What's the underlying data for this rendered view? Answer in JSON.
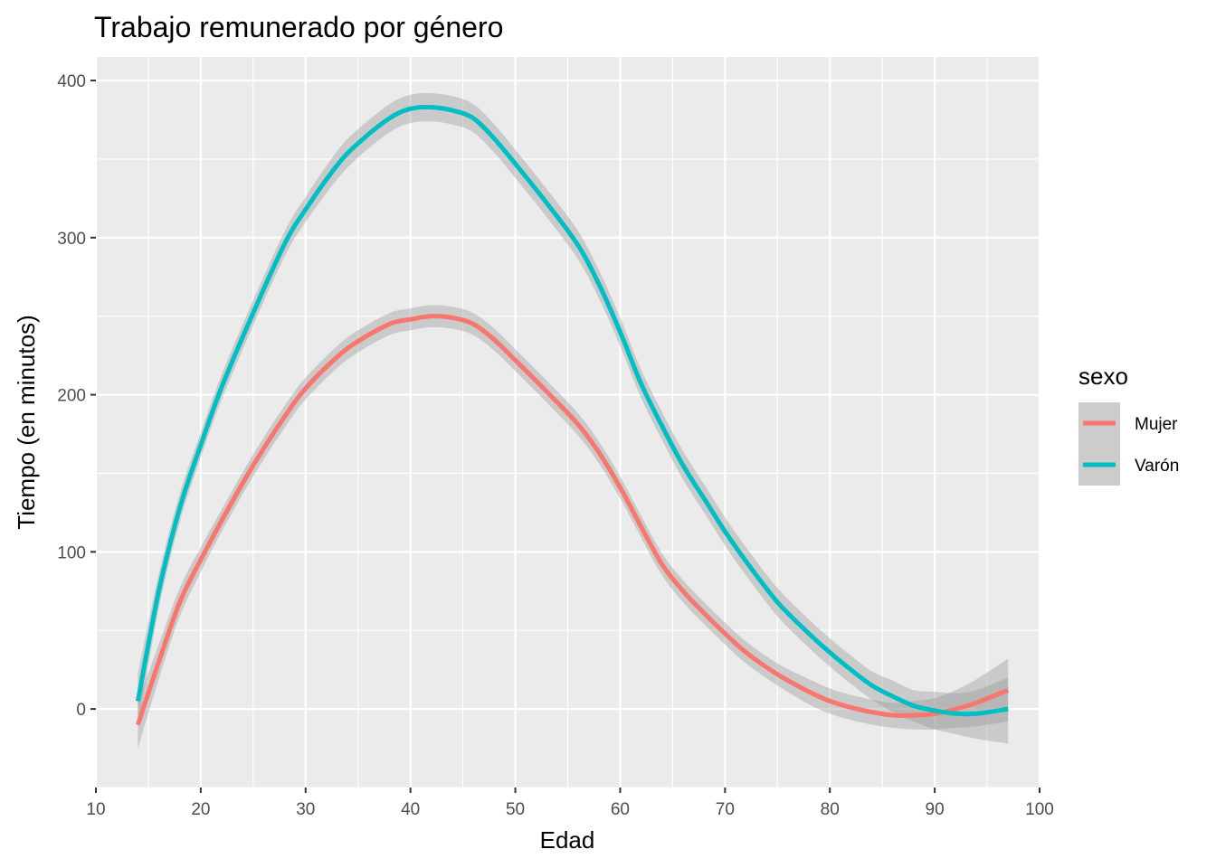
{
  "chart_data": {
    "type": "line",
    "title": "Trabajo remunerado por género",
    "xlabel": "Edad",
    "ylabel": "Tiempo (en minutos)",
    "xlim": [
      10,
      100
    ],
    "ylim": [
      -50,
      415
    ],
    "x_ticks": [
      10,
      20,
      30,
      40,
      50,
      60,
      70,
      80,
      90,
      100
    ],
    "y_ticks": [
      0,
      100,
      200,
      300,
      400
    ],
    "grid": true,
    "legend": {
      "title": "sexo",
      "position": "right"
    },
    "series": [
      {
        "name": "Mujer",
        "color": "#F8766D",
        "x": [
          14,
          16,
          18,
          20,
          22,
          25,
          28,
          30,
          33,
          35,
          38,
          40,
          42,
          44,
          46,
          48,
          50,
          53,
          56,
          58,
          60,
          62,
          64,
          66,
          68,
          70,
          72,
          75,
          78,
          80,
          82,
          84,
          86,
          88,
          90,
          92,
          94,
          97
        ],
        "y": [
          -10,
          30,
          68,
          95,
          120,
          155,
          186,
          204,
          224,
          234,
          245,
          248,
          250,
          249,
          245,
          235,
          222,
          202,
          181,
          163,
          141,
          116,
          92,
          75,
          61,
          48,
          36,
          22,
          11,
          5,
          1,
          -2,
          -4,
          -4,
          -3,
          0,
          4,
          12
        ],
        "y_low": [
          -25,
          19,
          59,
          87,
          113,
          148,
          179,
          197,
          217,
          227,
          238,
          241,
          243,
          242,
          238,
          228,
          215,
          195,
          174,
          156,
          134,
          109,
          85,
          68,
          54,
          41,
          29,
          15,
          3,
          -3,
          -7,
          -10,
          -12,
          -13,
          -13,
          -12,
          -11,
          -8
        ],
        "y_high": [
          5,
          41,
          77,
          103,
          127,
          162,
          193,
          211,
          231,
          241,
          252,
          255,
          257,
          256,
          252,
          242,
          229,
          209,
          188,
          170,
          148,
          123,
          99,
          82,
          68,
          55,
          43,
          29,
          19,
          13,
          9,
          6,
          4,
          5,
          7,
          12,
          19,
          32
        ]
      },
      {
        "name": "Varón",
        "color": "#00BFC4",
        "x": [
          14,
          16,
          18,
          20,
          22,
          25,
          28,
          30,
          33,
          35,
          38,
          40,
          42,
          44,
          46,
          48,
          50,
          53,
          56,
          58,
          60,
          62,
          64,
          66,
          68,
          70,
          72,
          75,
          78,
          80,
          82,
          84,
          86,
          88,
          90,
          92,
          94,
          97
        ],
        "y": [
          5,
          75,
          128,
          168,
          205,
          252,
          296,
          318,
          346,
          360,
          376,
          382,
          383,
          381,
          376,
          363,
          347,
          322,
          295,
          270,
          240,
          207,
          180,
          155,
          134,
          113,
          94,
          68,
          48,
          36,
          25,
          15,
          8,
          2,
          -1,
          -3,
          -3,
          0
        ],
        "y_low": [
          -12,
          64,
          119,
          160,
          197,
          244,
          288,
          310,
          337,
          351,
          367,
          373,
          374,
          372,
          367,
          354,
          338,
          313,
          286,
          261,
          231,
          198,
          171,
          146,
          125,
          104,
          85,
          59,
          39,
          27,
          16,
          6,
          -2,
          -8,
          -13,
          -16,
          -19,
          -22
        ],
        "y_high": [
          22,
          86,
          137,
          176,
          213,
          260,
          304,
          326,
          355,
          369,
          385,
          391,
          392,
          390,
          385,
          372,
          356,
          331,
          304,
          279,
          249,
          216,
          189,
          164,
          143,
          122,
          103,
          77,
          57,
          45,
          34,
          24,
          18,
          12,
          11,
          10,
          12,
          20
        ]
      }
    ]
  }
}
